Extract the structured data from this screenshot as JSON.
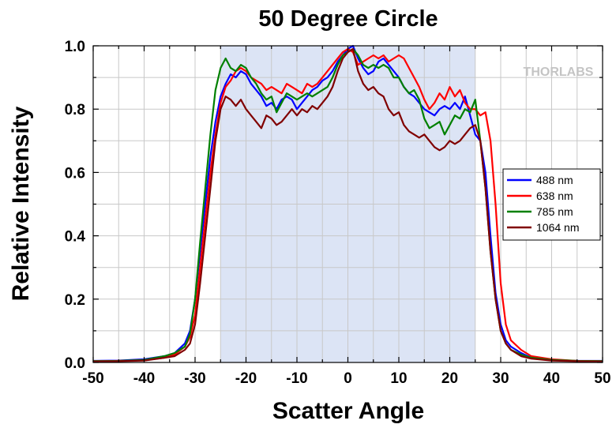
{
  "chart_data": {
    "type": "line",
    "title": "50 Degree Circle",
    "xlabel": "Scatter Angle",
    "ylabel": "Relative Intensity",
    "xlim": [
      -50,
      50
    ],
    "ylim": [
      0,
      1
    ],
    "grid": true,
    "xticks": [
      -50,
      -40,
      -30,
      -20,
      -10,
      0,
      10,
      20,
      30,
      40,
      50
    ],
    "yticks": [
      0.0,
      0.2,
      0.4,
      0.6,
      0.8,
      1.0
    ],
    "xtick_labels": [
      "-50",
      "-40",
      "-30",
      "-20",
      "-10",
      "0",
      "10",
      "20",
      "30",
      "40",
      "50"
    ],
    "ytick_labels": [
      "0.0",
      "0.2",
      "0.4",
      "0.6",
      "0.8",
      "1.0"
    ],
    "shaded_region": {
      "x": [
        -25,
        25
      ],
      "color": "#dce4f5"
    },
    "legend_position": "right",
    "logo": "THORLABS",
    "series": [
      {
        "name": "488 nm",
        "color": "#0000ff",
        "x": [
          -50,
          -45,
          -40,
          -36,
          -34,
          -32,
          -31,
          -30,
          -29,
          -28,
          -27,
          -26,
          -25,
          -24,
          -23,
          -22,
          -21,
          -20,
          -19,
          -18,
          -17,
          -16,
          -15,
          -14,
          -13,
          -12,
          -11,
          -10,
          -9,
          -8,
          -7,
          -6,
          -5,
          -4,
          -3,
          -2,
          -1,
          0,
          1,
          2,
          3,
          4,
          5,
          6,
          7,
          8,
          9,
          10,
          11,
          12,
          13,
          14,
          15,
          16,
          17,
          18,
          19,
          20,
          21,
          22,
          23,
          24,
          25,
          26,
          27,
          28,
          29,
          30,
          31,
          32,
          34,
          36,
          40,
          45,
          50
        ],
        "y": [
          0.005,
          0.006,
          0.01,
          0.02,
          0.03,
          0.06,
          0.1,
          0.2,
          0.35,
          0.5,
          0.65,
          0.76,
          0.84,
          0.88,
          0.91,
          0.9,
          0.92,
          0.91,
          0.88,
          0.86,
          0.84,
          0.81,
          0.82,
          0.8,
          0.83,
          0.84,
          0.83,
          0.8,
          0.82,
          0.84,
          0.86,
          0.87,
          0.89,
          0.9,
          0.92,
          0.95,
          0.97,
          0.99,
          1.0,
          0.96,
          0.93,
          0.91,
          0.92,
          0.95,
          0.96,
          0.94,
          0.92,
          0.9,
          0.87,
          0.85,
          0.84,
          0.82,
          0.8,
          0.79,
          0.78,
          0.8,
          0.81,
          0.8,
          0.82,
          0.8,
          0.84,
          0.78,
          0.72,
          0.7,
          0.6,
          0.4,
          0.22,
          0.12,
          0.07,
          0.05,
          0.03,
          0.015,
          0.008,
          0.005,
          0.005
        ]
      },
      {
        "name": "638 nm",
        "color": "#ff0000",
        "x": [
          -50,
          -45,
          -40,
          -36,
          -34,
          -32,
          -31,
          -30,
          -29,
          -28,
          -27,
          -26,
          -25,
          -24,
          -23,
          -22,
          -21,
          -20,
          -19,
          -18,
          -17,
          -16,
          -15,
          -14,
          -13,
          -12,
          -11,
          -10,
          -9,
          -8,
          -7,
          -6,
          -5,
          -4,
          -3,
          -2,
          -1,
          0,
          1,
          2,
          3,
          4,
          5,
          6,
          7,
          8,
          9,
          10,
          11,
          12,
          13,
          14,
          15,
          16,
          17,
          18,
          19,
          20,
          21,
          22,
          23,
          24,
          25,
          26,
          27,
          28,
          29,
          30,
          31,
          32,
          34,
          36,
          40,
          45,
          50
        ],
        "y": [
          0.004,
          0.005,
          0.007,
          0.015,
          0.025,
          0.05,
          0.08,
          0.15,
          0.3,
          0.45,
          0.6,
          0.72,
          0.82,
          0.87,
          0.89,
          0.92,
          0.93,
          0.92,
          0.9,
          0.89,
          0.88,
          0.86,
          0.87,
          0.86,
          0.85,
          0.88,
          0.87,
          0.86,
          0.85,
          0.88,
          0.87,
          0.88,
          0.9,
          0.92,
          0.94,
          0.96,
          0.98,
          0.99,
          0.98,
          0.94,
          0.95,
          0.96,
          0.97,
          0.96,
          0.97,
          0.95,
          0.96,
          0.97,
          0.96,
          0.93,
          0.9,
          0.87,
          0.83,
          0.8,
          0.82,
          0.85,
          0.83,
          0.87,
          0.84,
          0.86,
          0.82,
          0.8,
          0.8,
          0.78,
          0.79,
          0.7,
          0.5,
          0.25,
          0.12,
          0.07,
          0.04,
          0.02,
          0.01,
          0.005,
          0.004
        ]
      },
      {
        "name": "785 nm",
        "color": "#008000",
        "x": [
          -50,
          -45,
          -40,
          -36,
          -34,
          -32,
          -31,
          -30,
          -29,
          -28,
          -27,
          -26,
          -25,
          -24,
          -23,
          -22,
          -21,
          -20,
          -19,
          -18,
          -17,
          -16,
          -15,
          -14,
          -13,
          -12,
          -11,
          -10,
          -9,
          -8,
          -7,
          -6,
          -5,
          -4,
          -3,
          -2,
          -1,
          0,
          1,
          2,
          3,
          4,
          5,
          6,
          7,
          8,
          9,
          10,
          11,
          12,
          13,
          14,
          15,
          16,
          17,
          18,
          19,
          20,
          21,
          22,
          23,
          24,
          25,
          26,
          27,
          28,
          29,
          30,
          31,
          32,
          34,
          36,
          40,
          45,
          50
        ],
        "y": [
          0.004,
          0.005,
          0.008,
          0.02,
          0.03,
          0.05,
          0.09,
          0.2,
          0.38,
          0.55,
          0.72,
          0.86,
          0.93,
          0.96,
          0.93,
          0.92,
          0.94,
          0.93,
          0.9,
          0.88,
          0.85,
          0.83,
          0.84,
          0.79,
          0.82,
          0.85,
          0.84,
          0.83,
          0.84,
          0.85,
          0.84,
          0.85,
          0.86,
          0.87,
          0.9,
          0.94,
          0.97,
          0.98,
          0.99,
          0.97,
          0.94,
          0.93,
          0.94,
          0.93,
          0.94,
          0.93,
          0.9,
          0.9,
          0.87,
          0.85,
          0.86,
          0.83,
          0.77,
          0.74,
          0.75,
          0.76,
          0.72,
          0.75,
          0.78,
          0.77,
          0.8,
          0.79,
          0.83,
          0.7,
          0.55,
          0.35,
          0.2,
          0.1,
          0.06,
          0.04,
          0.025,
          0.015,
          0.008,
          0.005,
          0.004
        ]
      },
      {
        "name": "1064 nm",
        "color": "#800000",
        "x": [
          -50,
          -45,
          -40,
          -36,
          -34,
          -32,
          -31,
          -30,
          -29,
          -28,
          -27,
          -26,
          -25,
          -24,
          -23,
          -22,
          -21,
          -20,
          -19,
          -18,
          -17,
          -16,
          -15,
          -14,
          -13,
          -12,
          -11,
          -10,
          -9,
          -8,
          -7,
          -6,
          -5,
          -4,
          -3,
          -2,
          -1,
          0,
          1,
          2,
          3,
          4,
          5,
          6,
          7,
          8,
          9,
          10,
          11,
          12,
          13,
          14,
          15,
          16,
          17,
          18,
          19,
          20,
          21,
          22,
          23,
          24,
          25,
          26,
          27,
          28,
          29,
          30,
          31,
          32,
          34,
          36,
          40,
          45,
          50
        ],
        "y": [
          0.003,
          0.004,
          0.006,
          0.015,
          0.02,
          0.04,
          0.06,
          0.12,
          0.25,
          0.4,
          0.55,
          0.7,
          0.8,
          0.84,
          0.83,
          0.81,
          0.83,
          0.8,
          0.78,
          0.76,
          0.74,
          0.78,
          0.77,
          0.75,
          0.76,
          0.78,
          0.8,
          0.78,
          0.8,
          0.79,
          0.81,
          0.8,
          0.82,
          0.84,
          0.87,
          0.92,
          0.96,
          0.98,
          0.99,
          0.92,
          0.88,
          0.86,
          0.87,
          0.85,
          0.84,
          0.8,
          0.78,
          0.79,
          0.75,
          0.73,
          0.72,
          0.71,
          0.72,
          0.7,
          0.68,
          0.67,
          0.68,
          0.7,
          0.69,
          0.7,
          0.72,
          0.74,
          0.75,
          0.7,
          0.55,
          0.35,
          0.2,
          0.1,
          0.06,
          0.04,
          0.02,
          0.012,
          0.006,
          0.004,
          0.003
        ]
      }
    ]
  }
}
